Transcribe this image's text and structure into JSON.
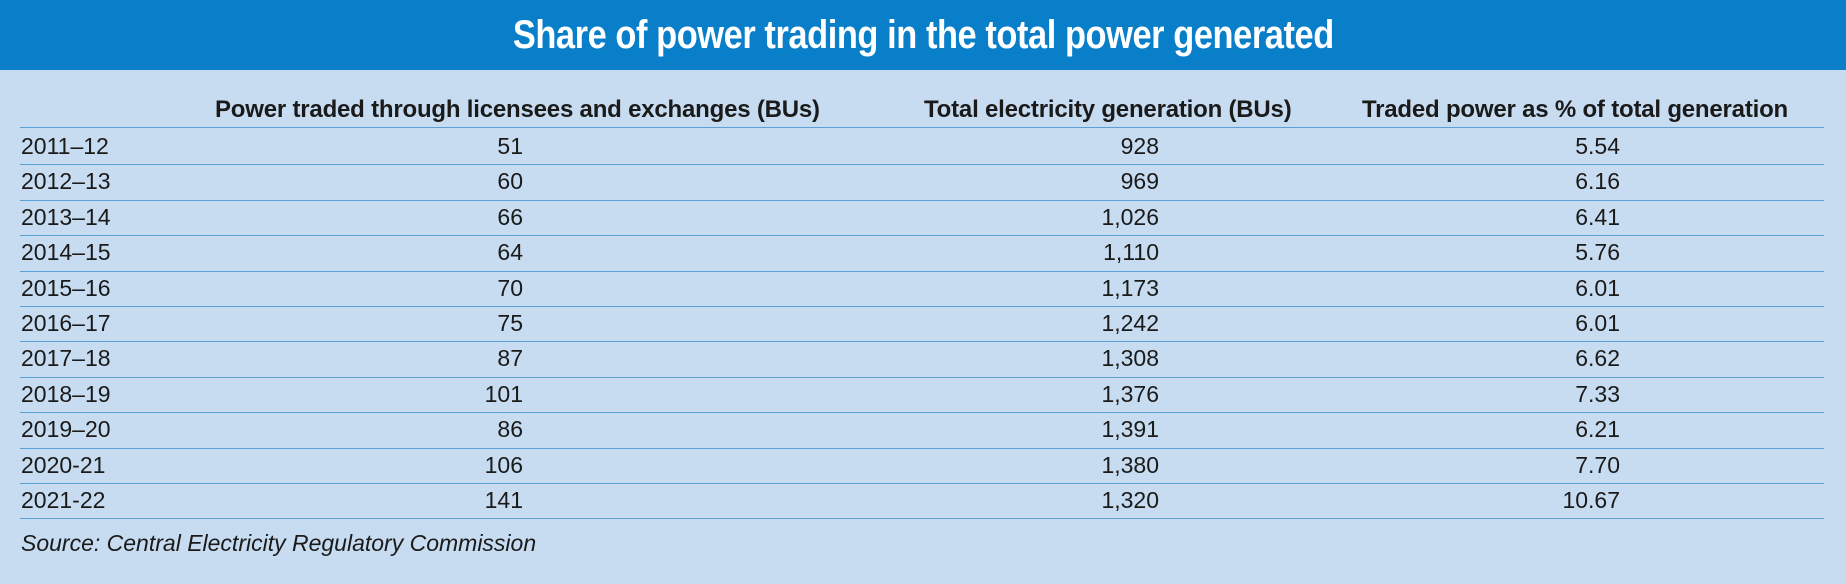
{
  "chart_data": {
    "type": "table",
    "title": "Share of power trading in the total power generated",
    "columns": [
      "",
      "Power traded through licensees and exchanges (BUs)",
      "Total electricity generation (BUs)",
      "Traded power as % of total generation"
    ],
    "rows": [
      {
        "year": "2011–12",
        "traded": "51",
        "generation": "928",
        "percent": "5.54"
      },
      {
        "year": "2012–13",
        "traded": "60",
        "generation": "969",
        "percent": "6.16"
      },
      {
        "year": "2013–14",
        "traded": "66",
        "generation": "1,026",
        "percent": "6.41"
      },
      {
        "year": "2014–15",
        "traded": "64",
        "generation": "1,110",
        "percent": "5.76"
      },
      {
        "year": "2015–16",
        "traded": "70",
        "generation": "1,173",
        "percent": "6.01"
      },
      {
        "year": "2016–17",
        "traded": "75",
        "generation": "1,242",
        "percent": "6.01"
      },
      {
        "year": "2017–18",
        "traded": "87",
        "generation": "1,308",
        "percent": "6.62"
      },
      {
        "year": "2018–19",
        "traded": "101",
        "generation": "1,376",
        "percent": "7.33"
      },
      {
        "year": "2019–20",
        "traded": "86",
        "generation": "1,391",
        "percent": "6.21"
      },
      {
        "year": "2020-21",
        "traded": "106",
        "generation": "1,380",
        "percent": "7.70"
      },
      {
        "year": "2021-22",
        "traded": "141",
        "generation": "1,320",
        "percent": "10.67"
      }
    ],
    "source": "Source: Central Electricity Regulatory Commission"
  },
  "colors": {
    "banner": "#0a7fc9",
    "background": "#c7dcf0",
    "divider": "#5b9fd6"
  }
}
